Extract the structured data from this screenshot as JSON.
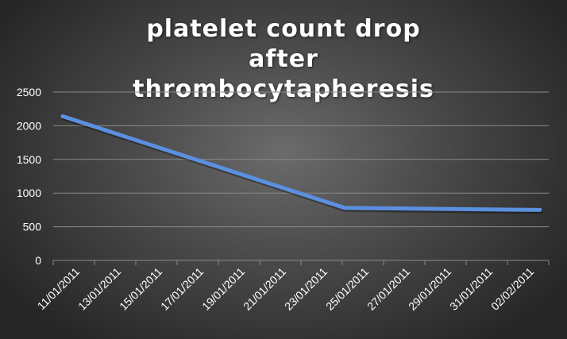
{
  "chart_data": {
    "type": "line",
    "title": "platelet count drop after thrombocytapheresis",
    "xlabel": "",
    "ylabel": "",
    "x_tick_labels": [
      "11/01/2011",
      "13/01/2011",
      "15/01/2011",
      "17/01/2011",
      "19/01/2011",
      "21/01/2011",
      "23/01/2011",
      "25/01/2011",
      "27/01/2011",
      "29/01/2011",
      "31/01/2011",
      "02/02/2011"
    ],
    "y_ticks": [
      0,
      500,
      1000,
      1500,
      2000,
      2500
    ],
    "ylim": [
      0,
      2500
    ],
    "grid": true,
    "legend": "none",
    "colors": {
      "line": "#5b8fe0",
      "grid": "#8a8a8a",
      "text": "#ffffff"
    },
    "series": [
      {
        "points": [
          {
            "x": "11/01/2011",
            "y": 2140
          },
          {
            "x": "24/01/2011",
            "y": 780
          },
          {
            "x": "02/02/2011",
            "y": 750
          }
        ]
      }
    ]
  }
}
